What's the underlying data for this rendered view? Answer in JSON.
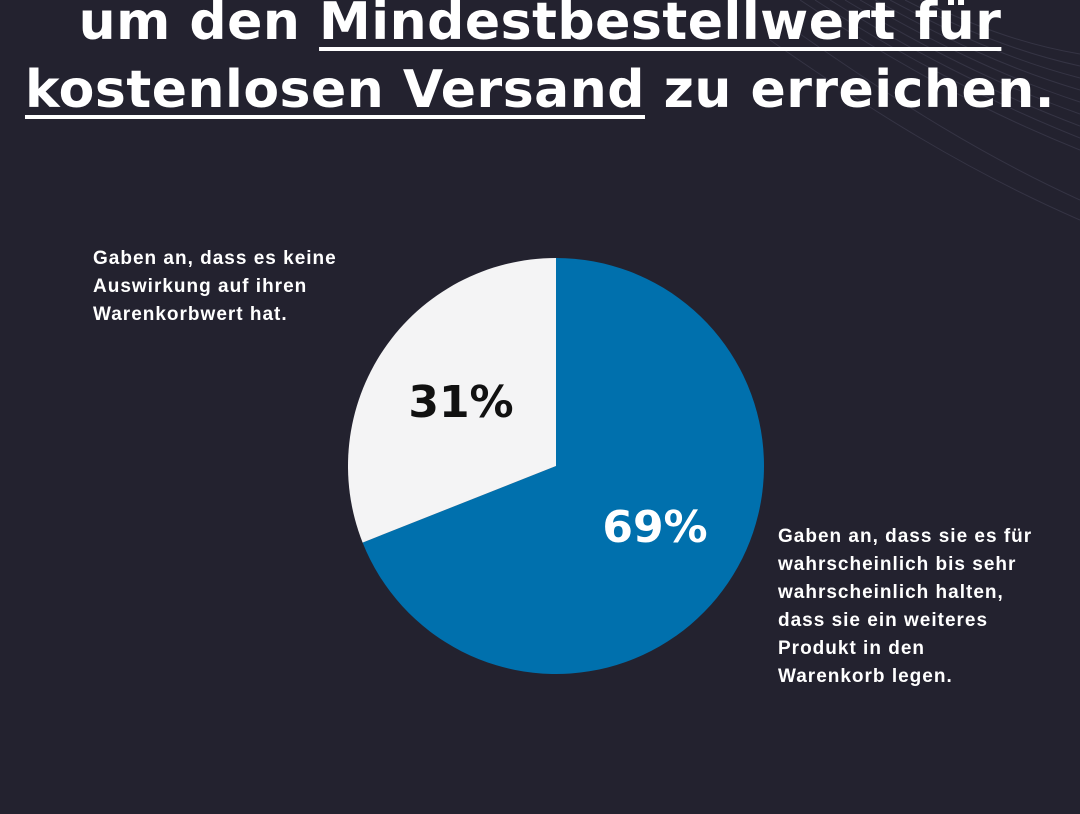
{
  "headline": {
    "line1_prefix": "um den ",
    "line1_highlight": "Mindestbestellwert für",
    "line2_highlight": "kostenlosen Versand",
    "line2_suffix": " zu erreichen."
  },
  "chart_data": {
    "type": "pie",
    "slices": [
      {
        "value": 69,
        "label": "69%",
        "color": "#0070ad",
        "label_color": "#ffffff",
        "annotation": [
          "Gaben an, dass sie es für",
          "wahrscheinlich bis sehr",
          "wahrscheinlich halten,",
          "dass sie ein weiteres",
          "Produkt in den",
          "Warenkorb legen."
        ]
      },
      {
        "value": 31,
        "label": "31%",
        "color": "#f4f4f5",
        "label_color": "#111111",
        "annotation": [
          "Gaben an, dass es keine",
          "Auswirkung auf ihren",
          "Warenkorbwert hat."
        ]
      }
    ],
    "start_angle": "12 o'clock",
    "direction": "clockwise"
  },
  "colors": {
    "background": "#23222f",
    "text": "#ffffff"
  }
}
